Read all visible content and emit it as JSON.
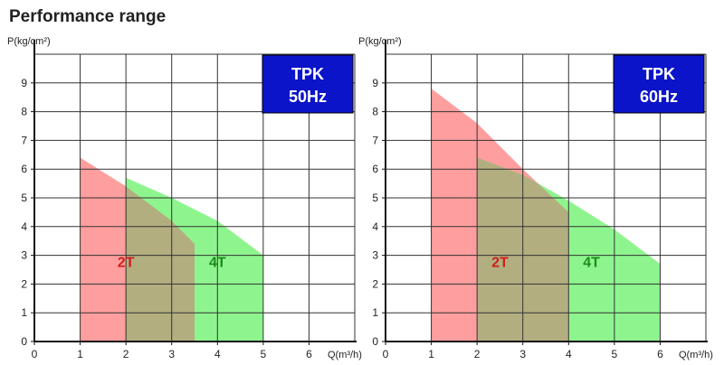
{
  "title": "Performance range",
  "colors": {
    "pink": "#ff9e9e",
    "green": "#8ef58e",
    "overlap": "#b3ae80",
    "label_2t": "#cc1f1a",
    "label_4t": "#1a8c1a",
    "badge_bg": "#0b14c8",
    "grid": "#333333"
  },
  "chart_data": [
    {
      "type": "area",
      "badge": [
        "TPK",
        "50Hz"
      ],
      "xlabel": "Q(m³/h)",
      "ylabel": "P(kg/cm²)",
      "xlim": [
        0,
        7
      ],
      "ylim": [
        0,
        10
      ],
      "x_ticks": [
        "0",
        "1",
        "2",
        "3",
        "4",
        "5",
        "6"
      ],
      "y_ticks": [
        "0",
        "1",
        "2",
        "3",
        "4",
        "5",
        "6",
        "7",
        "8",
        "9"
      ],
      "series": [
        {
          "name": "2T",
          "x": [
            1,
            2,
            3,
            3.5
          ],
          "y": [
            6.4,
            5.4,
            4.2,
            3.4
          ],
          "label_at": [
            2.0,
            2.6
          ]
        },
        {
          "name": "4T",
          "x": [
            2,
            3,
            4,
            5
          ],
          "y": [
            5.7,
            5.0,
            4.2,
            3.0
          ],
          "label_at": [
            4.0,
            2.6
          ]
        }
      ]
    },
    {
      "type": "area",
      "badge": [
        "TPK",
        "60Hz"
      ],
      "xlabel": "Q(m³/h)",
      "ylabel": "P(kg/cm²)",
      "xlim": [
        0,
        7
      ],
      "ylim": [
        0,
        10
      ],
      "x_ticks": [
        "0",
        "1",
        "2",
        "3",
        "4",
        "5",
        "6"
      ],
      "y_ticks": [
        "0",
        "1",
        "2",
        "3",
        "4",
        "5",
        "6",
        "7",
        "8",
        "9"
      ],
      "series": [
        {
          "name": "2T",
          "x": [
            1,
            2,
            3,
            4
          ],
          "y": [
            8.8,
            7.6,
            6.0,
            4.5
          ],
          "label_at": [
            2.5,
            2.6
          ]
        },
        {
          "name": "4T",
          "x": [
            2,
            3,
            4,
            5,
            6
          ],
          "y": [
            6.4,
            5.8,
            4.9,
            3.9,
            2.7
          ],
          "label_at": [
            4.5,
            2.6
          ]
        }
      ]
    }
  ]
}
